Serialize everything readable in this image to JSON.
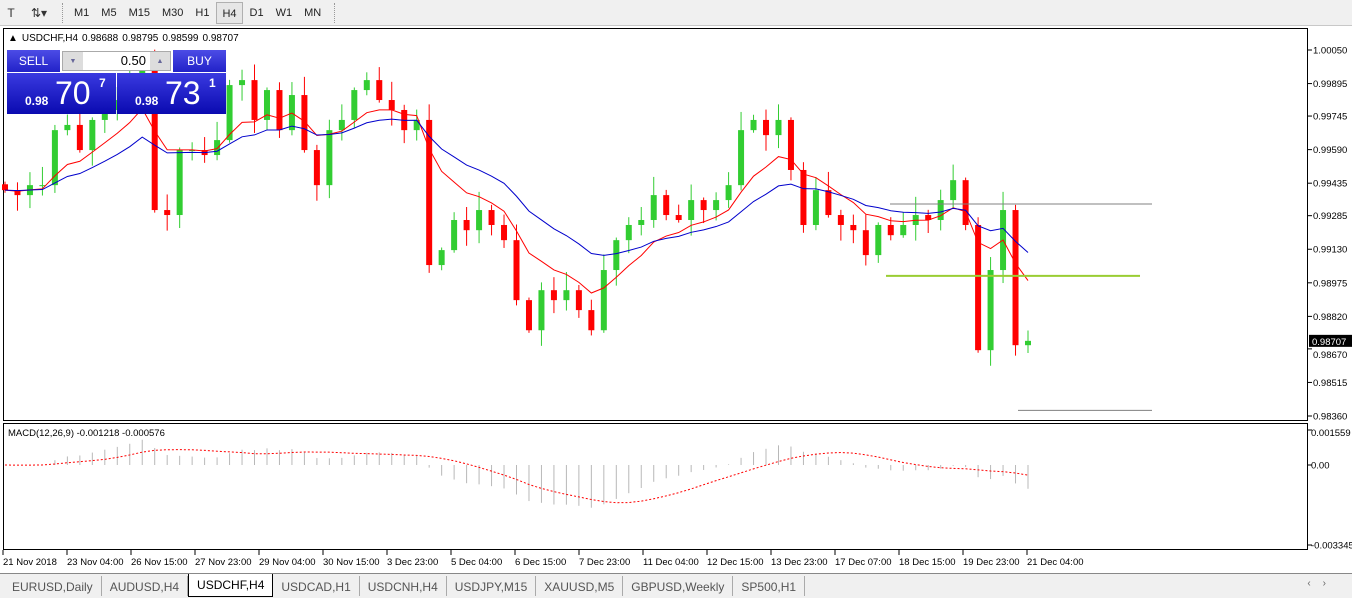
{
  "toolbar": {
    "timeframes": [
      "M1",
      "M5",
      "M15",
      "M30",
      "H1",
      "H4",
      "D1",
      "W1",
      "MN"
    ],
    "active": "H4"
  },
  "chart": {
    "symbol": "USDCHF,H4",
    "open": "0.98688",
    "high": "0.98795",
    "low": "0.98599",
    "close": "0.98707",
    "price_axis": [
      "1.00050",
      "0.99895",
      "0.99745",
      "0.99590",
      "0.99435",
      "0.99285",
      "0.99130",
      "0.98975",
      "0.98820",
      "0.98670",
      "0.98515",
      "0.98360"
    ],
    "current_price": "0.98707",
    "time_axis": [
      "21 Nov 2018",
      "23 Nov 04:00",
      "26 Nov 15:00",
      "27 Nov 23:00",
      "29 Nov 04:00",
      "30 Nov 15:00",
      "3 Dec 23:00",
      "5 Dec 04:00",
      "6 Dec 15:00",
      "7 Dec 23:00",
      "11 Dec 04:00",
      "12 Dec 15:00",
      "13 Dec 23:00",
      "17 Dec 07:00",
      "18 Dec 15:00",
      "19 Dec 23:00",
      "21 Dec 04:00"
    ],
    "bull_color": "#32cd32",
    "bear_color": "#ff0000",
    "closes": [
      0.99403,
      0.9938,
      0.99426,
      0.99426,
      0.9968,
      0.99704,
      0.99588,
      0.99727,
      0.99773,
      0.99819,
      0.99888,
      1.00004,
      0.99311,
      0.99288,
      0.99588,
      0.99588,
      0.99565,
      0.99634,
      0.99888,
      0.99911,
      0.99727,
      0.99865,
      0.9968,
      0.99842,
      0.99588,
      0.99426,
      0.9968,
      0.99727,
      0.99865,
      0.99911,
      0.99819,
      0.99773,
      0.9968,
      0.99727,
      0.99057,
      0.99126,
      0.99265,
      0.99218,
      0.99311,
      0.99242,
      0.99172,
      0.98895,
      0.98756,
      0.98941,
      0.98895,
      0.98941,
      0.98849,
      0.98756,
      0.99034,
      0.99172,
      0.99242,
      0.99265,
      0.9938,
      0.99288,
      0.99265,
      0.99357,
      0.99311,
      0.99357,
      0.99426,
      0.9968,
      0.99727,
      0.99657,
      0.99727,
      0.99496,
      0.99242,
      0.99403,
      0.99288,
      0.99242,
      0.99218,
      0.99103,
      0.99242,
      0.99195,
      0.99242,
      0.99288,
      0.99265,
      0.99357,
      0.99449,
      0.99242,
      0.98664,
      0.99034,
      0.99311,
      0.98687,
      0.98707
    ],
    "hlines": [
      {
        "price": 0.99339,
        "color": "#808080"
      },
      {
        "price": 0.99007,
        "color": "#9acd32"
      },
      {
        "price": 0.98386,
        "color": "#808080"
      }
    ]
  },
  "trade_panel": {
    "sell_label": "SELL",
    "buy_label": "BUY",
    "lot": "0.50",
    "sell_prefix": "0.98",
    "sell_big": "70",
    "sell_sup": "7",
    "buy_prefix": "0.98",
    "buy_big": "73",
    "buy_sup": "1"
  },
  "macd": {
    "label": "MACD(12,26,9) -0.001218 -0.000576",
    "axis": [
      "0.001559",
      "0.00",
      "-0.003345"
    ]
  },
  "tabs": [
    "EURUSD,Daily",
    "AUDUSD,H4",
    "USDCHF,H4",
    "USDCAD,H1",
    "USDCNH,H4",
    "USDJPY,M15",
    "XAUUSD,M5",
    "GBPUSD,Weekly",
    "SP500,H1"
  ],
  "active_tab": "USDCHF,H4"
}
